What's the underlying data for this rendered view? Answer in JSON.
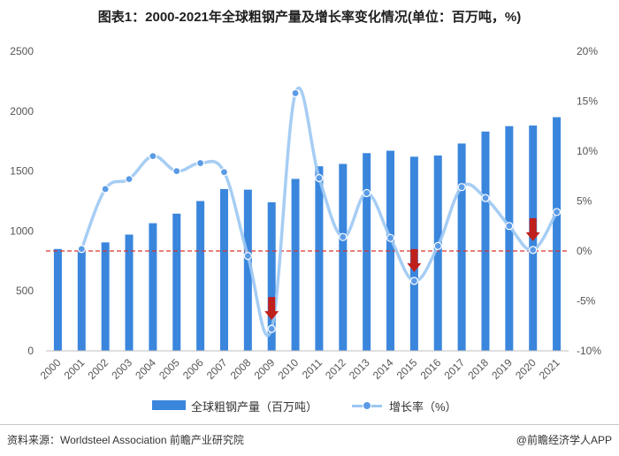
{
  "title": "图表1：2000-2021年全球粗钢产量及增长率变化情况(单位：百万吨，%)",
  "chart_data": {
    "type": "bar",
    "categories": [
      "2000",
      "2001",
      "2002",
      "2003",
      "2004",
      "2005",
      "2006",
      "2007",
      "2008",
      "2009",
      "2010",
      "2011",
      "2012",
      "2013",
      "2014",
      "2015",
      "2016",
      "2017",
      "2018",
      "2019",
      "2020",
      "2021"
    ],
    "series": [
      {
        "name": "全球粗钢产量（百万吨）",
        "type": "bar",
        "axis": "left",
        "color": "#3a86dd",
        "values": [
          850,
          852,
          905,
          970,
          1065,
          1145,
          1250,
          1350,
          1345,
          1240,
          1435,
          1540,
          1560,
          1650,
          1670,
          1620,
          1630,
          1730,
          1830,
          1875,
          1880,
          1950
        ]
      },
      {
        "name": "增长率（%）",
        "type": "line",
        "axis": "right",
        "color": "#9cc8f3",
        "marker_color": "#5b9be6",
        "values": [
          null,
          0.2,
          6.2,
          7.2,
          9.5,
          8.0,
          8.8,
          7.9,
          -0.5,
          -7.8,
          15.8,
          7.3,
          1.4,
          5.8,
          1.3,
          -3.0,
          0.5,
          6.4,
          5.3,
          2.5,
          0.1,
          3.9
        ]
      }
    ],
    "y_left": {
      "min": 0,
      "max": 2500,
      "ticks": [
        "0",
        "500",
        "1000",
        "1500",
        "2000",
        "2500"
      ],
      "tick_values": [
        0,
        500,
        1000,
        1500,
        2000,
        2500
      ]
    },
    "y_right": {
      "min": -10,
      "max": 20,
      "ticks": [
        "-10%",
        "-5%",
        "0%",
        "5%",
        "10%",
        "15%",
        "20%"
      ],
      "tick_values": [
        -10,
        -5,
        0,
        5,
        10,
        15,
        20
      ]
    },
    "reference_line": {
      "axis": "right",
      "value": 0,
      "color": "#d9342b",
      "style": "dashed"
    },
    "down_arrows": {
      "color": "#c0201c",
      "years": [
        "2009",
        "2015",
        "2020"
      ]
    },
    "legend_position": "bottom-center"
  },
  "legend": {
    "bar_label": "全球粗钢产量（百万吨）",
    "line_label": "增长率（%）"
  },
  "footer": {
    "source": "资料来源：Worldsteel Association 前瞻产业研究院",
    "brand": "@前瞻经济学人APP"
  }
}
